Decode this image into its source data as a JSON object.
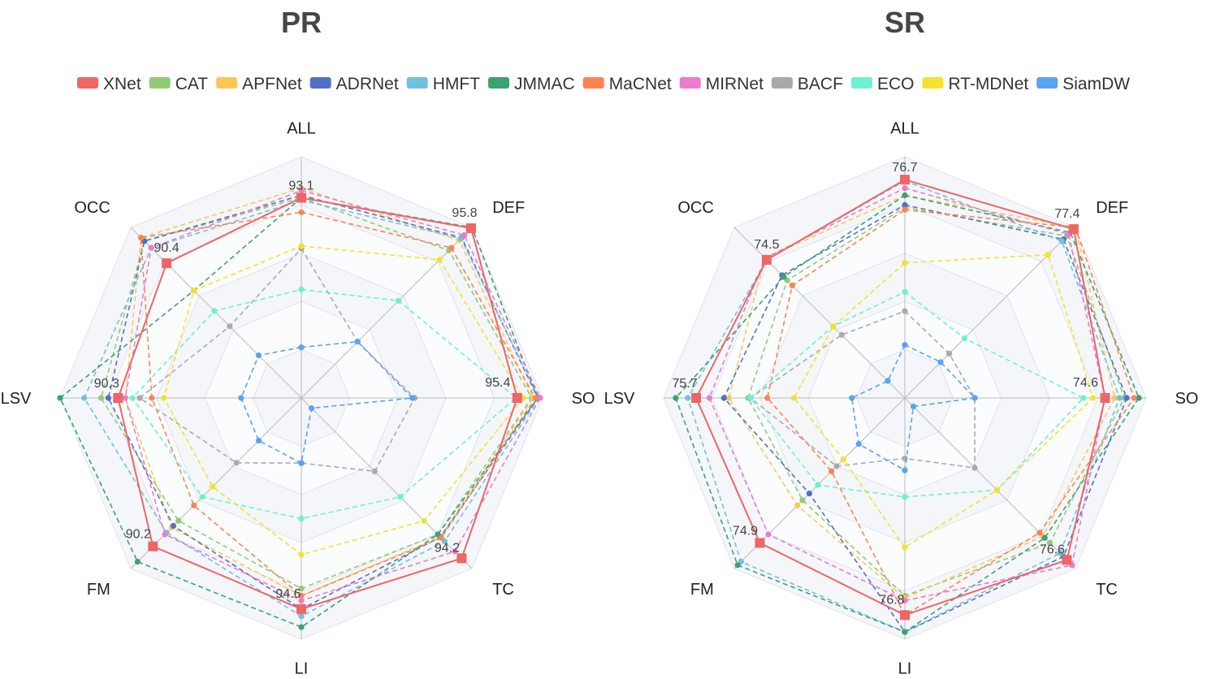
{
  "indicators": [
    "ALL",
    "DEF",
    "SO",
    "TC",
    "LI",
    "FM",
    "LSV",
    "OCC"
  ],
  "legend": [
    {
      "name": "XNet",
      "color": "#ee6666"
    },
    {
      "name": "CAT",
      "color": "#91cc75"
    },
    {
      "name": "APFNet",
      "color": "#fac858"
    },
    {
      "name": "ADRNet",
      "color": "#5470c6"
    },
    {
      "name": "HMFT",
      "color": "#73c0de"
    },
    {
      "name": "JMMAC",
      "color": "#3ba272"
    },
    {
      "name": "MaCNet",
      "color": "#fc8452"
    },
    {
      "name": "MIRNet",
      "color": "#ea7ccc"
    },
    {
      "name": "BACF",
      "color": "#aaaaaa"
    },
    {
      "name": "ECO",
      "color": "#6ff0d0"
    },
    {
      "name": "RT-MDNet",
      "color": "#f5e130"
    },
    {
      "name": "SiamDW",
      "color": "#5aa3f0"
    }
  ],
  "chart_data": [
    {
      "type": "radar",
      "title": "PR",
      "indicators": [
        "ALL",
        "DEF",
        "SO",
        "TC",
        "LI",
        "FM",
        "LSV",
        "OCC"
      ],
      "series": [
        {
          "name": "XNet",
          "color": "#ee6666",
          "dashed": false,
          "values": [
            93.1,
            95.8,
            95.4,
            94.2,
            94.6,
            90.2,
            90.3,
            90.4
          ],
          "labels": [
            "93.1",
            "95.8",
            "95.4",
            "94.2",
            "94.6",
            "90.2",
            "90.3",
            "90.4"
          ]
        },
        {
          "name": "CAT",
          "color": "#91cc75",
          "dashed": true,
          "values": [
            0.83,
            0.865,
            0.955,
            0.8,
            0.79,
            0.72,
            0.83,
            0.92
          ]
        },
        {
          "name": "APFNet",
          "color": "#fac858",
          "dashed": true,
          "values": [
            0.87,
            0.925,
            0.96,
            0.815,
            0.82,
            0.76,
            0.73,
            0.94
          ]
        },
        {
          "name": "ADRNet",
          "color": "#5470c6",
          "dashed": true,
          "values": [
            0.84,
            0.94,
            0.98,
            0.815,
            0.875,
            0.75,
            0.8,
            0.92
          ]
        },
        {
          "name": "HMFT",
          "color": "#73c0de",
          "dashed": true,
          "values": [
            0.82,
            0.935,
            0.985,
            0.84,
            0.905,
            0.79,
            0.9,
            0.88
          ]
        },
        {
          "name": "JMMAC",
          "color": "#3ba272",
          "dashed": true,
          "values": [
            0.83,
            1.0,
            0.98,
            0.8,
            0.95,
            0.96,
            1.0,
            0.63
          ]
        },
        {
          "name": "MaCNet",
          "color": "#fc8452",
          "dashed": true,
          "values": [
            0.77,
            0.88,
            0.97,
            0.82,
            0.82,
            0.63,
            0.62,
            0.94
          ]
        },
        {
          "name": "MIRNet",
          "color": "#ea7ccc",
          "dashed": true,
          "values": [
            0.86,
            0.955,
            0.99,
            0.9,
            0.84,
            0.8,
            0.73,
            0.88
          ]
        },
        {
          "name": "BACF",
          "color": "#aaaaaa",
          "dashed": true,
          "values": [
            0.62,
            0.33,
            0.47,
            0.43,
            0.27,
            0.38,
            0.67,
            0.42
          ]
        },
        {
          "name": "ECO",
          "color": "#6ff0d0",
          "dashed": true,
          "values": [
            0.45,
            0.57,
            0.89,
            0.58,
            0.5,
            0.58,
            0.7,
            0.51
          ]
        },
        {
          "name": "RT-MDNet",
          "color": "#f5e130",
          "dashed": true,
          "values": [
            0.63,
            0.81,
            0.92,
            0.72,
            0.65,
            0.52,
            0.57,
            0.63
          ]
        },
        {
          "name": "SiamDW",
          "color": "#5aa3f0",
          "dashed": true,
          "values": [
            0.21,
            0.33,
            0.46,
            0.06,
            0.27,
            0.25,
            0.25,
            0.25
          ]
        }
      ]
    },
    {
      "type": "radar",
      "title": "SR",
      "indicators": [
        "ALL",
        "DEF",
        "SO",
        "TC",
        "LI",
        "FM",
        "LSV",
        "OCC"
      ],
      "series": [
        {
          "name": "XNet",
          "color": "#ee6666",
          "dashed": false,
          "values": [
            76.7,
            77.4,
            74.6,
            76.6,
            76.8,
            74.9,
            75.7,
            74.5
          ],
          "labels": [
            "76.7",
            "77.4",
            "74.6",
            "76.6",
            "76.8",
            "74.9",
            "75.7",
            "74.5"
          ]
        },
        {
          "name": "CAT",
          "color": "#91cc75",
          "dashed": true,
          "values": [
            0.79,
            0.95,
            0.91,
            0.85,
            0.82,
            0.6,
            0.65,
            0.69
          ]
        },
        {
          "name": "APFNet",
          "color": "#fac858",
          "dashed": true,
          "values": [
            0.84,
            1.0,
            0.87,
            0.81,
            0.83,
            0.63,
            0.73,
            0.82
          ]
        },
        {
          "name": "ADRNet",
          "color": "#5470c6",
          "dashed": true,
          "values": [
            0.8,
            0.93,
            0.92,
            0.93,
            0.97,
            0.56,
            0.75,
            0.72
          ]
        },
        {
          "name": "HMFT",
          "color": "#73c0de",
          "dashed": true,
          "values": [
            0.9,
            0.92,
            0.89,
            0.91,
            0.97,
            0.96,
            0.9,
            0.81
          ]
        },
        {
          "name": "JMMAC",
          "color": "#3ba272",
          "dashed": true,
          "values": [
            0.84,
            0.97,
            0.97,
            0.82,
            0.97,
            0.98,
            0.95,
            0.71
          ]
        },
        {
          "name": "MaCNet",
          "color": "#fc8452",
          "dashed": true,
          "values": [
            0.78,
            1.0,
            0.95,
            0.79,
            0.9,
            0.43,
            0.57,
            0.66
          ]
        },
        {
          "name": "MIRNet",
          "color": "#ea7ccc",
          "dashed": true,
          "values": [
            0.87,
            0.96,
            0.83,
            0.98,
            0.84,
            0.8,
            0.81,
            0.82
          ]
        },
        {
          "name": "BACF",
          "color": "#aaaaaa",
          "dashed": true,
          "values": [
            0.36,
            0.26,
            0.29,
            0.41,
            0.25,
            0.4,
            0.64,
            0.37
          ]
        },
        {
          "name": "ECO",
          "color": "#6ff0d0",
          "dashed": true,
          "values": [
            0.44,
            0.35,
            0.74,
            0.54,
            0.41,
            0.51,
            0.64,
            0.42
          ]
        },
        {
          "name": "RT-MDNet",
          "color": "#f5e130",
          "dashed": true,
          "values": [
            0.56,
            0.84,
            0.78,
            0.54,
            0.62,
            0.36,
            0.46,
            0.42
          ]
        },
        {
          "name": "SiamDW",
          "color": "#5aa3f0",
          "dashed": true,
          "values": [
            0.22,
            0.21,
            0.29,
            0.05,
            0.3,
            0.27,
            0.22,
            0.1
          ]
        }
      ]
    }
  ]
}
